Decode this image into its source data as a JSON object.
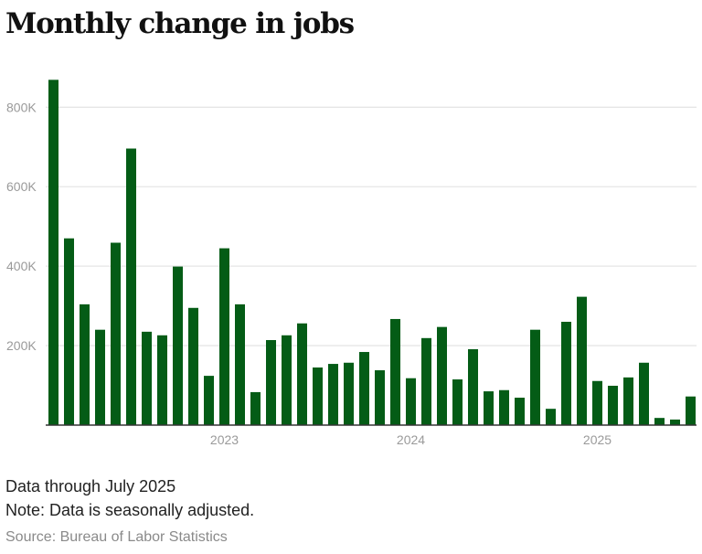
{
  "title": "Monthly change in jobs",
  "notes": [
    "Data through July 2025",
    "Note: Data is seasonally adjusted."
  ],
  "source": "Source: Bureau of Labor Statistics",
  "chart_data": {
    "type": "bar",
    "title": "Monthly change in jobs",
    "xlabel": "",
    "ylabel": "",
    "categories": [
      "2022-02",
      "2022-03",
      "2022-04",
      "2022-05",
      "2022-06",
      "2022-07",
      "2022-08",
      "2022-09",
      "2022-10",
      "2022-11",
      "2022-12",
      "2023-01",
      "2023-02",
      "2023-03",
      "2023-04",
      "2023-05",
      "2023-06",
      "2023-07",
      "2023-08",
      "2023-09",
      "2023-10",
      "2023-11",
      "2023-12",
      "2024-01",
      "2024-02",
      "2024-03",
      "2024-04",
      "2024-05",
      "2024-06",
      "2024-07",
      "2024-08",
      "2024-09",
      "2024-10",
      "2024-11",
      "2024-12",
      "2025-01",
      "2025-02",
      "2025-03",
      "2025-04",
      "2025-05",
      "2025-06",
      "2025-07"
    ],
    "values": [
      869000,
      470000,
      304000,
      240000,
      459000,
      696000,
      235000,
      226000,
      399000,
      295000,
      124000,
      445000,
      304000,
      83000,
      214000,
      226000,
      256000,
      145000,
      154000,
      157000,
      184000,
      138000,
      267000,
      118000,
      219000,
      247000,
      115000,
      191000,
      85000,
      88000,
      69000,
      240000,
      41000,
      260000,
      323000,
      111000,
      99000,
      120000,
      157000,
      18000,
      14000,
      72000
    ],
    "x_ticks": [
      {
        "category": "2023-01",
        "label": "2023"
      },
      {
        "category": "2024-01",
        "label": "2024"
      },
      {
        "category": "2025-01",
        "label": "2025"
      }
    ],
    "y_ticks": [
      {
        "value": 200000,
        "label": "200K"
      },
      {
        "value": 400000,
        "label": "400K"
      },
      {
        "value": 600000,
        "label": "600K"
      },
      {
        "value": 800000,
        "label": "800K"
      }
    ],
    "ylim": [
      0,
      800000
    ],
    "grid": true,
    "legend": "none",
    "colors": {
      "bar": "#045c16",
      "grid": "#e6e6e6",
      "axis": "#333333",
      "tick_label": "#9a9a9a"
    }
  }
}
